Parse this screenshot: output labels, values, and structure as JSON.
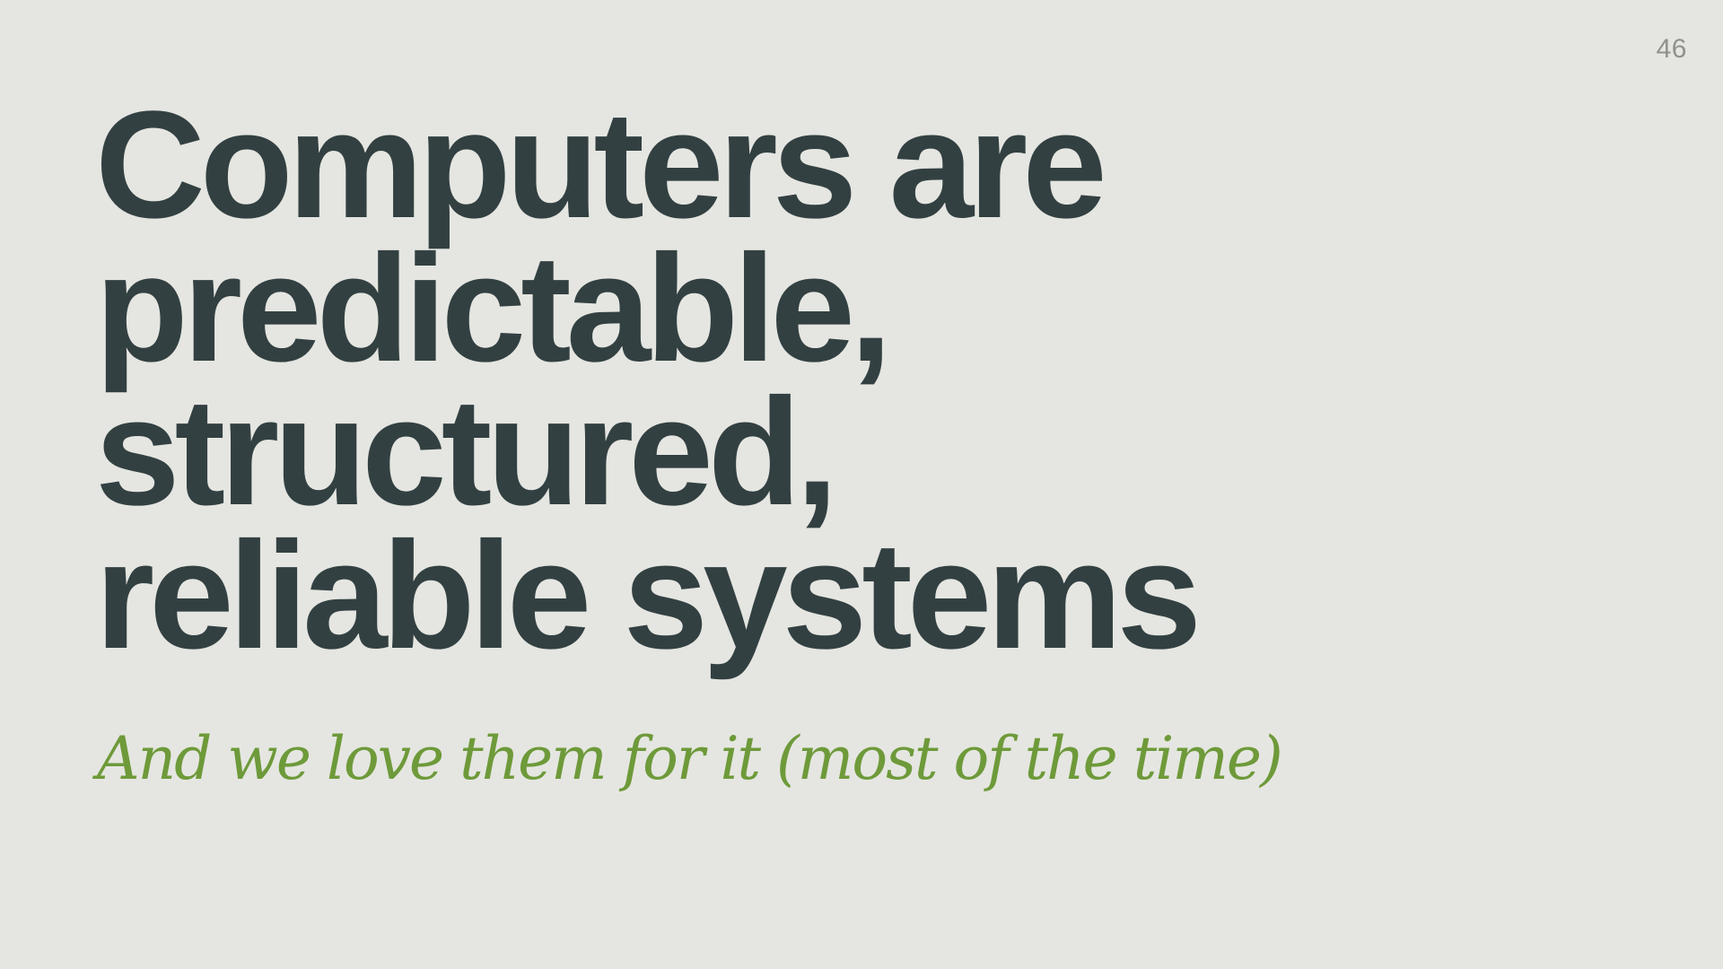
{
  "slide": {
    "page_number": "46",
    "headline_lines": [
      "Computers are",
      "predictable,",
      "structured,",
      "reliable systems"
    ],
    "subtitle": "And we love them for it (most of the time)",
    "colors": {
      "background": "#e5e6e1",
      "headline": "#334042",
      "subtitle": "#6e9a3a",
      "page_number": "#8e918c"
    }
  }
}
